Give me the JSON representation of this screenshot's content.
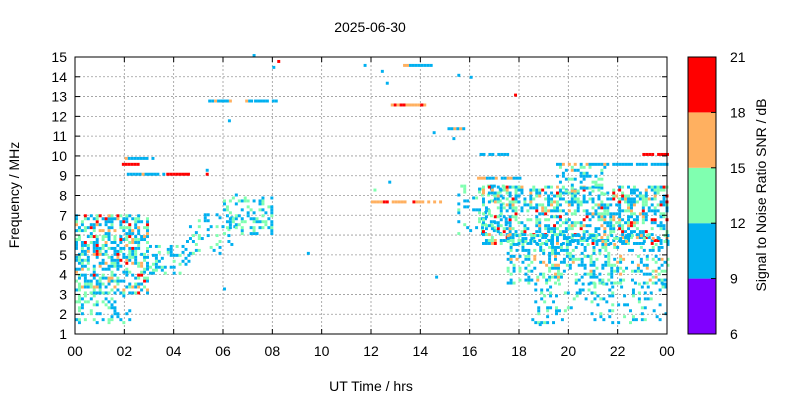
{
  "chart_data": {
    "type": "heatmap",
    "title": "2025-06-30",
    "xlabel": "UT Time / hrs",
    "ylabel": "Frequency / MHz",
    "xlim": [
      0,
      24
    ],
    "ylim": [
      1,
      15
    ],
    "x_ticks": [
      "00",
      "02",
      "04",
      "06",
      "08",
      "10",
      "12",
      "14",
      "16",
      "18",
      "20",
      "22",
      "00"
    ],
    "y_ticks": [
      "1",
      "2",
      "3",
      "4",
      "5",
      "6",
      "7",
      "8",
      "9",
      "10",
      "11",
      "12",
      "13",
      "14",
      "15"
    ],
    "grid": true,
    "colorbar": {
      "label": "Signal to Noise Ratio SNR / dB",
      "ticks": [
        "6",
        "9",
        "12",
        "15",
        "18",
        "21"
      ],
      "range": [
        6,
        21
      ],
      "bands": [
        {
          "from": 6,
          "to": 9,
          "color": "#8000ff"
        },
        {
          "from": 9,
          "to": 12,
          "color": "#00b0f0"
        },
        {
          "from": 12,
          "to": 15,
          "color": "#80ffb0"
        },
        {
          "from": 15,
          "to": 18,
          "color": "#ffb060"
        },
        {
          "from": 18,
          "to": 21,
          "color": "#ff0000"
        }
      ]
    },
    "clusters": [
      {
        "x": [
          0.0,
          3.0
        ],
        "y": [
          3.0,
          7.0
        ],
        "snr": [
          10,
          20
        ],
        "density": 0.55
      },
      {
        "x": [
          0.0,
          2.2
        ],
        "y": [
          1.5,
          3.0
        ],
        "snr": [
          10,
          14
        ],
        "density": 0.25
      },
      {
        "x": [
          3.0,
          4.6
        ],
        "y": [
          4.0,
          5.5
        ],
        "snr": [
          10,
          13
        ],
        "density": 0.35
      },
      {
        "x": [
          4.5,
          6.5
        ],
        "y": [
          5.0,
          7.0
        ],
        "snr": [
          10,
          12
        ],
        "density": 0.15
      },
      {
        "x": [
          6.0,
          8.0
        ],
        "y": [
          6.0,
          8.0
        ],
        "snr": [
          10,
          15
        ],
        "density": 0.35
      },
      {
        "x": [
          15.5,
          17.5
        ],
        "y": [
          6.0,
          8.5
        ],
        "snr": [
          10,
          14
        ],
        "density": 0.2
      },
      {
        "x": [
          16.5,
          24.0
        ],
        "y": [
          5.5,
          8.5
        ],
        "snr": [
          10,
          20
        ],
        "density": 0.5
      },
      {
        "x": [
          17.5,
          24.0
        ],
        "y": [
          3.5,
          6.0
        ],
        "snr": [
          10,
          18
        ],
        "density": 0.35
      },
      {
        "x": [
          18.5,
          24.0
        ],
        "y": [
          1.5,
          3.5
        ],
        "snr": [
          10,
          13
        ],
        "density": 0.18
      },
      {
        "x": [
          19.5,
          21.5
        ],
        "y": [
          8.0,
          9.5
        ],
        "snr": [
          10,
          16
        ],
        "density": 0.3
      }
    ],
    "traces": [
      {
        "x": [
          1.9,
          3.2
        ],
        "y": 9.8,
        "snr": 11
      },
      {
        "x": [
          1.9,
          2.6
        ],
        "y": 9.5,
        "snr": 18
      },
      {
        "x": [
          2.1,
          3.6
        ],
        "y": 9.0,
        "snr": 11
      },
      {
        "x": [
          3.7,
          4.6
        ],
        "y": 9.0,
        "snr": 18
      },
      {
        "x": [
          5.4,
          6.3
        ],
        "y": 12.7,
        "snr": 11
      },
      {
        "x": [
          6.9,
          8.4
        ],
        "y": 12.7,
        "snr": 11
      },
      {
        "x": [
          12.8,
          14.2
        ],
        "y": 12.5,
        "snr": 17
      },
      {
        "x": [
          13.3,
          14.4
        ],
        "y": 14.5,
        "snr": 11
      },
      {
        "x": [
          15.1,
          15.9
        ],
        "y": 11.3,
        "snr": 11
      },
      {
        "x": [
          16.4,
          17.6
        ],
        "y": 10.0,
        "snr": 11
      },
      {
        "x": [
          16.3,
          18.0
        ],
        "y": 8.8,
        "snr": 11
      },
      {
        "x": [
          12.0,
          14.8
        ],
        "y": 7.6,
        "snr": 17
      },
      {
        "x": [
          19.5,
          24.0
        ],
        "y": 9.5,
        "snr": 11
      },
      {
        "x": [
          23.0,
          24.0
        ],
        "y": 10.0,
        "snr": 19
      }
    ],
    "points": [
      {
        "x": 6.2,
        "y": 11.7,
        "snr": 11
      },
      {
        "x": 7.1,
        "y": 12.7,
        "snr": 11
      },
      {
        "x": 8.2,
        "y": 14.7,
        "snr": 19
      },
      {
        "x": 8.0,
        "y": 14.4,
        "snr": 11
      },
      {
        "x": 11.7,
        "y": 14.5,
        "snr": 11
      },
      {
        "x": 12.4,
        "y": 14.2,
        "snr": 11
      },
      {
        "x": 12.6,
        "y": 13.6,
        "snr": 11
      },
      {
        "x": 16.0,
        "y": 13.9,
        "snr": 11
      },
      {
        "x": 15.5,
        "y": 14.0,
        "snr": 11
      },
      {
        "x": 17.8,
        "y": 13.0,
        "snr": 19
      },
      {
        "x": 14.0,
        "y": 12.5,
        "snr": 18
      },
      {
        "x": 14.5,
        "y": 11.1,
        "snr": 11
      },
      {
        "x": 15.3,
        "y": 10.8,
        "snr": 11
      },
      {
        "x": 5.3,
        "y": 9.2,
        "snr": 11
      },
      {
        "x": 5.3,
        "y": 9.0,
        "snr": 19
      },
      {
        "x": 9.4,
        "y": 5.0,
        "snr": 11
      },
      {
        "x": 12.1,
        "y": 8.2,
        "snr": 13
      },
      {
        "x": 12.7,
        "y": 8.6,
        "snr": 11
      },
      {
        "x": 14.6,
        "y": 3.8,
        "snr": 11
      },
      {
        "x": 18.8,
        "y": 1.4,
        "snr": 11
      },
      {
        "x": 6.0,
        "y": 3.2,
        "snr": 11
      },
      {
        "x": 7.2,
        "y": 15.0,
        "snr": 11
      }
    ]
  }
}
